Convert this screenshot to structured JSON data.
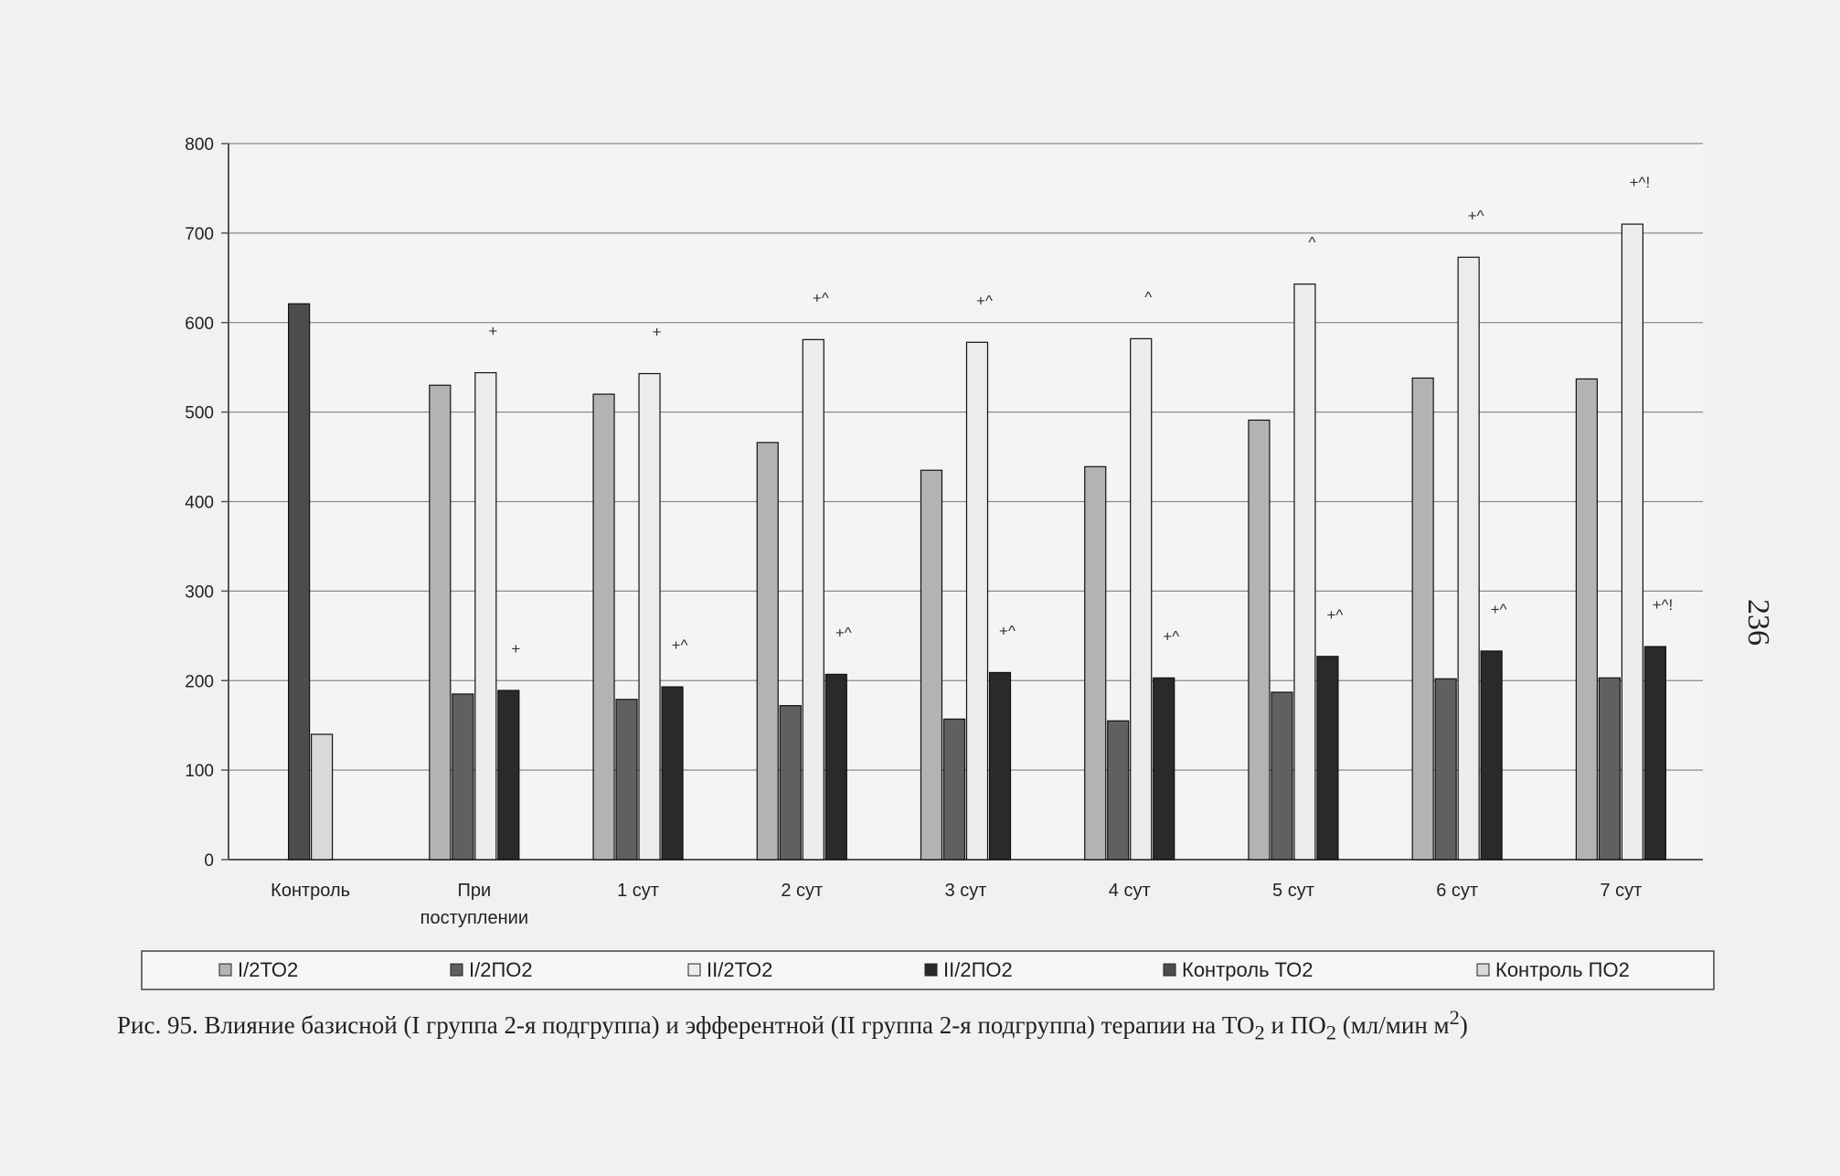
{
  "chart_data": {
    "type": "bar",
    "categories": [
      "Контроль",
      "При поступлении",
      "1 сут",
      "2 сут",
      "3 сут",
      "4 сут",
      "5 сут",
      "6 сут",
      "7 сут"
    ],
    "category_lines": [
      [
        "Контроль"
      ],
      [
        "При",
        "поступлении"
      ],
      [
        "1 сут"
      ],
      [
        "2 сут"
      ],
      [
        "3 сут"
      ],
      [
        "4 сут"
      ],
      [
        "5 сут"
      ],
      [
        "6 сут"
      ],
      [
        "7 сут"
      ]
    ],
    "series": [
      {
        "name": "I/2ТО2",
        "color": "#b3b3b3",
        "values": [
          null,
          530,
          520,
          466,
          435,
          439,
          491,
          538,
          537
        ],
        "annotations": [
          null,
          null,
          null,
          null,
          null,
          null,
          null,
          null,
          null
        ]
      },
      {
        "name": "I/2ПО2",
        "color": "#606060",
        "values": [
          null,
          185,
          179,
          172,
          157,
          155,
          187,
          202,
          203
        ],
        "annotations": [
          null,
          null,
          null,
          null,
          null,
          null,
          null,
          null,
          null
        ]
      },
      {
        "name": "II/2ТО2",
        "color": "#ececec",
        "values": [
          null,
          544,
          543,
          581,
          578,
          582,
          643,
          673,
          710
        ],
        "annotations": [
          null,
          "+",
          "+",
          "+^",
          "+^",
          "^",
          "^",
          "+^",
          "+^!"
        ]
      },
      {
        "name": "II/2ПО2",
        "color": "#2a2a2a",
        "values": [
          null,
          189,
          193,
          207,
          209,
          203,
          227,
          233,
          238
        ],
        "annotations": [
          null,
          "+",
          "+^",
          "+^",
          "+^",
          "+^",
          "+^",
          "+^",
          "+^!"
        ]
      },
      {
        "name": "Контроль ТО2",
        "color": "#4d4d4d",
        "values": [
          621,
          null,
          null,
          null,
          null,
          null,
          null,
          null,
          null
        ],
        "annotations": [
          null,
          null,
          null,
          null,
          null,
          null,
          null,
          null,
          null
        ]
      },
      {
        "name": "Контроль ПО2",
        "color": "#d9d9d9",
        "values": [
          140,
          null,
          null,
          null,
          null,
          null,
          null,
          null,
          null
        ],
        "annotations": [
          null,
          null,
          null,
          null,
          null,
          null,
          null,
          null,
          null
        ]
      }
    ],
    "yticks": [
      0,
      100,
      200,
      300,
      400,
      500,
      600,
      700,
      800
    ],
    "ylim": [
      0,
      800
    ],
    "grid": true,
    "legend_position": "bottom"
  },
  "caption": {
    "lead": "Рис. 95. Влияние базисной (I группа 2-я подгруппа) и эфферентной (II группа 2-я подгруппа) терапии на ТО",
    "sub1": "2",
    "mid": " и ПО",
    "sub2": "2",
    "units": " (мл/мин м",
    "sup": "2",
    "close": ")"
  },
  "page_number": "236"
}
